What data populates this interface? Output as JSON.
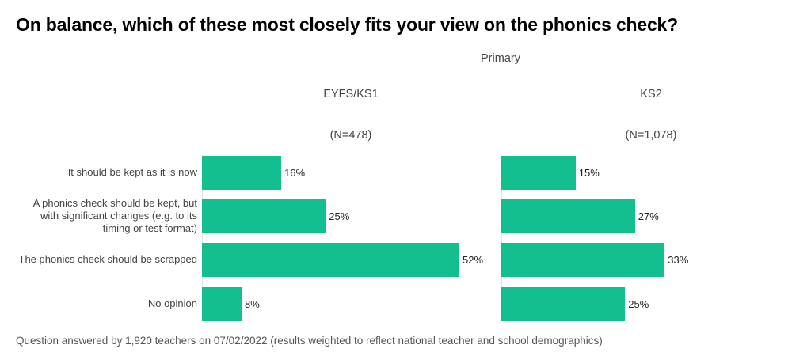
{
  "title": "On balance, which of these most closely fits your view on the phonics check?",
  "supergroup": "Primary",
  "footer": "Question answered by 1,920 teachers on 07/02/2022 (results weighted to reflect national teacher and school demographics)",
  "colors": {
    "bar": "#13bf8f",
    "axis": "#e3e3e3"
  },
  "chart_data": {
    "type": "bar",
    "orientation": "horizontal",
    "unit": "%",
    "categories": [
      "It should be kept as it is now",
      "A phonics check should be kept, but with significant changes (e.g. to its timing or test format)",
      "The phonics check should be scrapped",
      "No opinion"
    ],
    "category_lines": [
      [
        "It should be kept as it is now"
      ],
      [
        "A phonics check should be kept, but",
        "with significant changes (e.g. to its",
        "timing or test format)"
      ],
      [
        "The phonics check should be scrapped"
      ],
      [
        "No opinion"
      ]
    ],
    "panels": [
      {
        "name": "EYFS/KS1",
        "n": "(N=478)",
        "values": [
          16,
          25,
          52,
          8
        ],
        "labels": [
          "16%",
          "25%",
          "52%",
          "8%"
        ]
      },
      {
        "name": "KS2",
        "n": "(N=1,078)",
        "values": [
          15,
          27,
          33,
          25
        ],
        "labels": [
          "15%",
          "27%",
          "33%",
          "25%"
        ]
      }
    ],
    "xlim": [
      0,
      100
    ],
    "grid": false,
    "legend": "none"
  }
}
